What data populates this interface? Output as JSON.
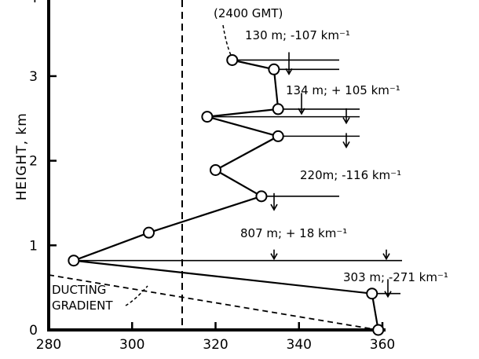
{
  "chart_data": {
    "type": "line",
    "ylabel": "HEIGHT, km",
    "xlim": [
      280,
      360
    ],
    "ylim": [
      0,
      4
    ],
    "x_ticks": [
      280,
      300,
      320,
      340,
      360
    ],
    "y_ticks": [
      0,
      1,
      2,
      3
    ],
    "x_tick_labels": [
      "280",
      "300",
      "320",
      "340",
      "360"
    ],
    "y_tick_labels": [
      "0",
      "1",
      "2",
      "3"
    ],
    "series": [
      {
        "points": [
          {
            "x": 359.0,
            "y": 0.0
          },
          {
            "x": 357.5,
            "y": 0.43
          },
          {
            "x": 286.0,
            "y": 0.82
          },
          {
            "x": 304.0,
            "y": 1.15
          },
          {
            "x": 331.0,
            "y": 1.58
          },
          {
            "x": 320.0,
            "y": 1.89
          },
          {
            "x": 335.0,
            "y": 2.29
          },
          {
            "x": 318.0,
            "y": 2.52
          },
          {
            "x": 335.0,
            "y": 2.61
          },
          {
            "x": 334.0,
            "y": 3.08
          },
          {
            "x": 324.0,
            "y": 3.19
          }
        ]
      }
    ],
    "reference_line": {
      "x": 312
    },
    "ducting_gradient": {
      "from": {
        "x": 280,
        "y": 0.65
      },
      "to": {
        "x": 359,
        "y": 0.0
      }
    },
    "annotations": [
      {
        "text": "(2400 GMT)"
      },
      {
        "text": "130 m; -107 km⁻¹"
      },
      {
        "text": "134 m; + 105 km⁻¹"
      },
      {
        "text": "220m; -116 km⁻¹"
      },
      {
        "text": "807 m; + 18 km⁻¹"
      },
      {
        "text": "303 m; -271 km⁻¹"
      },
      {
        "text": "DUCTING"
      },
      {
        "text": "GRADIENT"
      }
    ]
  }
}
